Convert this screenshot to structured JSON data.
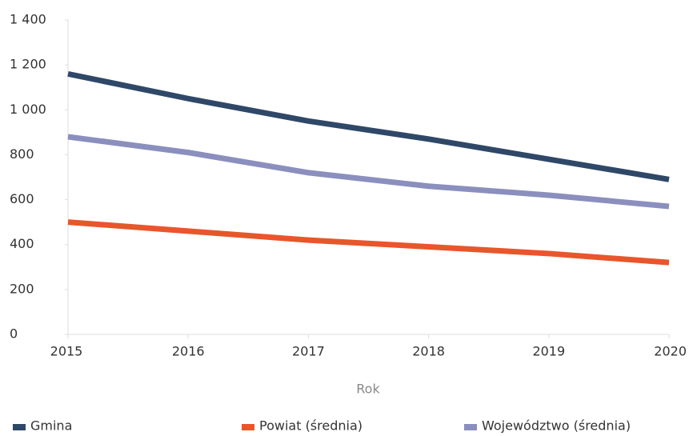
{
  "chart_data": {
    "type": "line",
    "x": [
      2015,
      2016,
      2017,
      2018,
      2019,
      2020
    ],
    "x_label": "Rok",
    "series": [
      {
        "name": "Gmina",
        "color": "#2f4868",
        "values": [
          1160,
          1050,
          950,
          870,
          780,
          690
        ]
      },
      {
        "name": "Powiat (średnia)",
        "color": "#e8562b",
        "values": [
          500,
          460,
          420,
          390,
          360,
          320
        ]
      },
      {
        "name": "Województwo (średnia)",
        "color": "#8b8fbe",
        "values": [
          880,
          810,
          720,
          660,
          620,
          570
        ]
      }
    ],
    "xlim": [
      2015,
      2020
    ],
    "xticks": [
      2015,
      2016,
      2017,
      2018,
      2019,
      2020
    ],
    "ylim": [
      0,
      1400
    ],
    "yticks": [
      0,
      200,
      400,
      600,
      800,
      {
        "value": 1000,
        "label": "1 000"
      },
      {
        "value": 1200,
        "label": "1 200"
      },
      {
        "value": 1400,
        "label": "1 400"
      }
    ],
    "legend": "bottom"
  }
}
